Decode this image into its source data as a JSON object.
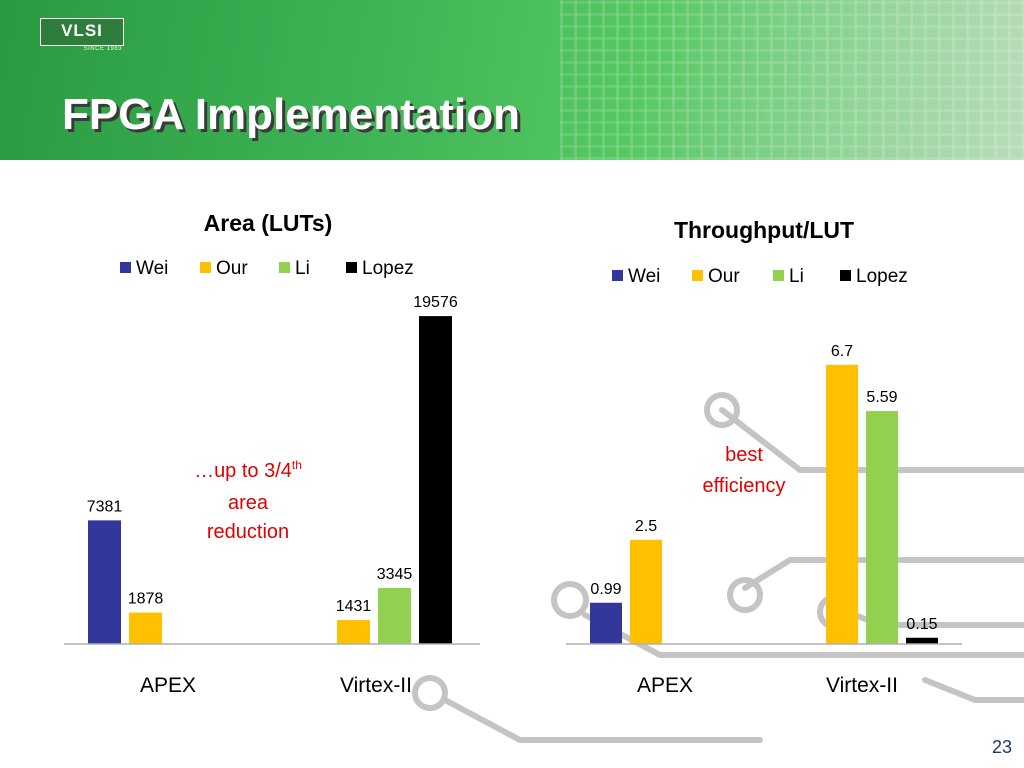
{
  "header": {
    "logo_text": "VLSI",
    "logo_subtext": "SINCE 1983",
    "title": "FPGA Implementation"
  },
  "page_number": "23",
  "colors": {
    "wei": "#33369a",
    "our": "#ffc000",
    "li": "#92d050",
    "lopez": "#000000",
    "annotation": "#e00000",
    "header_green": "#3fb556"
  },
  "chart_data": [
    {
      "type": "bar",
      "title": "Area (LUTs)",
      "categories": [
        "APEX",
        "Virtex-II"
      ],
      "legend_position": "top",
      "grid": false,
      "ylim": [
        0,
        20000
      ],
      "series": [
        {
          "name": "Wei",
          "values": [
            7381,
            null
          ],
          "labels": [
            "7381",
            ""
          ]
        },
        {
          "name": "Our",
          "values": [
            1878,
            1431
          ],
          "labels": [
            "1878",
            "1431"
          ]
        },
        {
          "name": "Li",
          "values": [
            null,
            3345
          ],
          "labels": [
            "",
            "3345"
          ]
        },
        {
          "name": "Lopez",
          "values": [
            null,
            19576
          ],
          "labels": [
            "",
            "19576"
          ]
        }
      ],
      "annotation": {
        "prefix": "…up to 3/4",
        "superscript": "th",
        "line2": "area",
        "line3": "reduction"
      }
    },
    {
      "type": "bar",
      "title": "Throughput/LUT",
      "categories": [
        "APEX",
        "Virtex-II"
      ],
      "legend_position": "top",
      "grid": false,
      "ylim": [
        0,
        7.2
      ],
      "series": [
        {
          "name": "Wei",
          "values": [
            0.99,
            null
          ],
          "labels": [
            "0.99",
            ""
          ]
        },
        {
          "name": "Our",
          "values": [
            2.5,
            6.7
          ],
          "labels": [
            "2.5",
            "6.7"
          ]
        },
        {
          "name": "Li",
          "values": [
            null,
            5.59
          ],
          "labels": [
            "",
            "5.59"
          ]
        },
        {
          "name": "Lopez",
          "values": [
            null,
            0.15
          ],
          "labels": [
            "",
            "0.15"
          ]
        }
      ],
      "annotation": {
        "line1": "best",
        "line2": "efficiency"
      }
    }
  ]
}
